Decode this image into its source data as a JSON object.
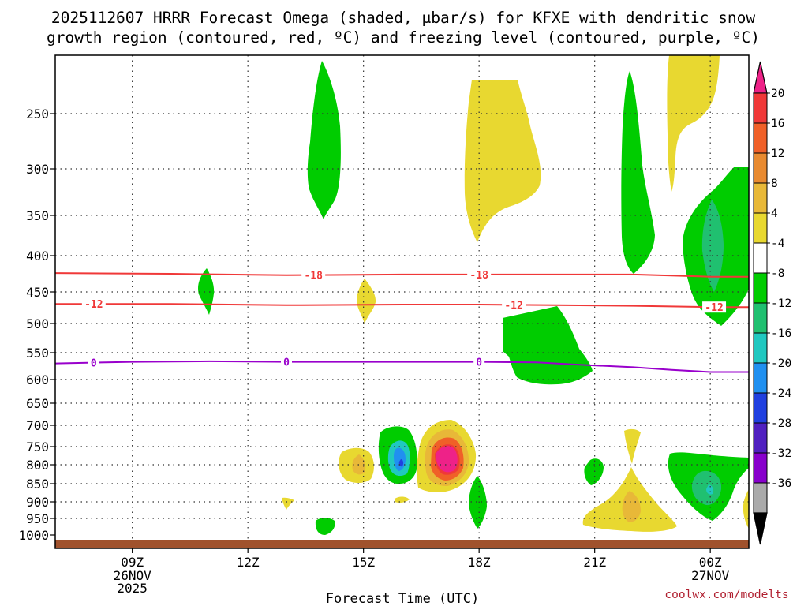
{
  "chart_data": {
    "type": "heatmap",
    "title": {
      "line1": "2025112607 HRRR Forecast Omega (shaded, μbar/s) for KFXE with dendritic snow",
      "line2": "growth region (contoured, red, ºC) and freezing level (contoured, purple, ºC)"
    },
    "xlabel": "Forecast Time (UTC)",
    "ylabel": "",
    "credit": "coolwx.com/modelts",
    "x_ticks": [
      {
        "label": "09Z",
        "sub1": "26NOV",
        "sub2": "2025",
        "hour": 9
      },
      {
        "label": "12Z",
        "sub1": "",
        "sub2": "",
        "hour": 12
      },
      {
        "label": "15Z",
        "sub1": "",
        "sub2": "",
        "hour": 15
      },
      {
        "label": "18Z",
        "sub1": "",
        "sub2": "",
        "hour": 18
      },
      {
        "label": "21Z",
        "sub1": "",
        "sub2": "",
        "hour": 21
      },
      {
        "label": "00Z",
        "sub1": "27NOV",
        "sub2": "",
        "hour": 24
      }
    ],
    "x_range_hours": [
      7.0,
      25.0
    ],
    "y_ticks": [
      250,
      300,
      350,
      400,
      450,
      500,
      550,
      600,
      650,
      700,
      750,
      800,
      850,
      900,
      950,
      1000
    ],
    "y_range_hpa": [
      1025,
      200
    ],
    "y_grid_dotted": [
      250,
      300,
      350,
      400,
      450,
      500,
      550,
      600,
      650,
      700,
      750,
      800,
      850,
      900,
      950
    ],
    "x_grid_dotted": [
      9,
      12,
      15,
      18,
      21,
      24
    ],
    "colorbar": {
      "labels": [
        "20",
        "16",
        "12",
        "8",
        "4",
        "-4",
        "-8",
        "-12",
        "-16",
        "-20",
        "-24",
        "-28",
        "-32",
        "-36"
      ],
      "colors": [
        "#ee2288",
        "#f03838",
        "#f06028",
        "#e88a30",
        "#e8b838",
        "#e8d830",
        "#ffffff",
        "#00cc00",
        "#20c070",
        "#20c8c0",
        "#2090f0",
        "#2040e0",
        "#5020c0",
        "#8800cc",
        "#aaaaaa",
        "#000000"
      ],
      "units": "μbar/s"
    },
    "contours": [
      {
        "name": "dendritic -18C",
        "color": "#f03838",
        "label": "-18",
        "label_hours": [
          13.7,
          18.0
        ],
        "points": [
          [
            7.0,
            424
          ],
          [
            10.0,
            425
          ],
          [
            13.0,
            427
          ],
          [
            16.0,
            426
          ],
          [
            18.0,
            426
          ],
          [
            20.0,
            426
          ],
          [
            22.0,
            426
          ],
          [
            24.0,
            429
          ],
          [
            25.0,
            429
          ]
        ]
      },
      {
        "name": "dendritic -12C",
        "color": "#f03838",
        "label": "-12",
        "label_hours": [
          8.0,
          18.9,
          24.1
        ],
        "points": [
          [
            7.0,
            469
          ],
          [
            10.0,
            469
          ],
          [
            13.0,
            471
          ],
          [
            16.0,
            470
          ],
          [
            18.0,
            470
          ],
          [
            20.0,
            471
          ],
          [
            22.0,
            472
          ],
          [
            24.0,
            474
          ],
          [
            25.0,
            474
          ]
        ]
      },
      {
        "name": "freezing level 0C",
        "color": "#9900cc",
        "label": "0",
        "label_hours": [
          8.0,
          13.0,
          18.0
        ],
        "points": [
          [
            7.0,
            570
          ],
          [
            9.0,
            567
          ],
          [
            11.0,
            566
          ],
          [
            13.0,
            567
          ],
          [
            15.0,
            567
          ],
          [
            17.0,
            567
          ],
          [
            18.0,
            567
          ],
          [
            19.5,
            568
          ],
          [
            20.5,
            572
          ],
          [
            22.0,
            577
          ],
          [
            23.0,
            582
          ],
          [
            24.0,
            586
          ],
          [
            25.0,
            586
          ]
        ]
      }
    ],
    "features": [
      {
        "sign": "up",
        "value_range": [
          -8,
          -4
        ],
        "hours": [
          14.0,
          14.0
        ],
        "pres": [
          245,
          355
        ],
        "note": "upper green"
      },
      {
        "sign": "up",
        "value_range": [
          -8,
          -4
        ],
        "hours": [
          10.9,
          10.9
        ],
        "pres": [
          415,
          485
        ]
      },
      {
        "sign": "up",
        "value_range": [
          -8,
          -4
        ],
        "hours": [
          21.7,
          21.7
        ],
        "pres": [
          235,
          425
        ]
      },
      {
        "sign": "down",
        "value_range": [
          4,
          8
        ],
        "hours": [
          17.8,
          18.2
        ],
        "pres": [
          220,
          385
        ]
      },
      {
        "sign": "down",
        "value_range": [
          4,
          8
        ],
        "hours": [
          23.7,
          24.4
        ],
        "pres": [
          200,
          315
        ]
      },
      {
        "sign": "down",
        "value_range": [
          4,
          8
        ],
        "hours": [
          15.1,
          15.1
        ],
        "pres": [
          440,
          490
        ]
      },
      {
        "sign": "up",
        "value_range": [
          -16,
          -4
        ],
        "hours": [
          24.0,
          24.8
        ],
        "pres": [
          300,
          505
        ]
      },
      {
        "sign": "up",
        "value_range": [
          -8,
          -4
        ],
        "hours": [
          19.0,
          20.3
        ],
        "pres": [
          470,
          605
        ]
      },
      {
        "sign": "down",
        "value_range": [
          4,
          12
        ],
        "hours": [
          14.8,
          14.8
        ],
        "pres": [
          770,
          830
        ]
      },
      {
        "sign": "up",
        "value_range": [
          -20,
          -4
        ],
        "hours": [
          16.0,
          16.0
        ],
        "pres": [
          720,
          860
        ]
      },
      {
        "sign": "down",
        "value_range": [
          4,
          24
        ],
        "hours": [
          17.0,
          17.0
        ],
        "pres": [
          710,
          860
        ]
      },
      {
        "sign": "up",
        "value_range": [
          -8,
          -4
        ],
        "hours": [
          18.0,
          18.0
        ],
        "pres": [
          840,
          965
        ]
      },
      {
        "sign": "down",
        "value_range": [
          4,
          8
        ],
        "hours": [
          16.0,
          16.0
        ],
        "pres": [
          880,
          890
        ]
      },
      {
        "sign": "down",
        "value_range": [
          4,
          8
        ],
        "hours": [
          13.0,
          13.0
        ],
        "pres": [
          890,
          910
        ]
      },
      {
        "sign": "up",
        "value_range": [
          -8,
          -4
        ],
        "hours": [
          14.0,
          14.0
        ],
        "pres": [
          955,
          995
        ]
      },
      {
        "sign": "up",
        "value_range": [
          -8,
          -4
        ],
        "hours": [
          20.8,
          20.8
        ],
        "pres": [
          780,
          840
        ]
      },
      {
        "sign": "down",
        "value_range": [
          4,
          12
        ],
        "hours": [
          21.8,
          22.4
        ],
        "pres": [
          710,
          990
        ]
      },
      {
        "sign": "up",
        "value_range": [
          -16,
          -4
        ],
        "hours": [
          24.0,
          24.0
        ],
        "pres": [
          770,
          960
        ]
      },
      {
        "sign": "down",
        "value_range": [
          4,
          8
        ],
        "hours": [
          25.0,
          25.0
        ],
        "pres": [
          870,
          960
        ]
      }
    ],
    "surface_band": "#a0522d"
  }
}
